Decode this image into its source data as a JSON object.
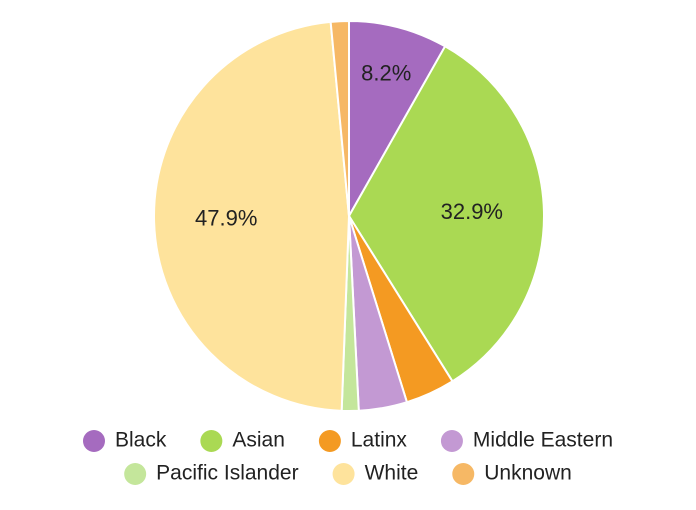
{
  "chart_data": {
    "type": "pie",
    "categories": [
      "Black",
      "Asian",
      "Latinx",
      "Middle Eastern",
      "Pacific Islander",
      "White",
      "Unknown"
    ],
    "values": [
      8.2,
      32.9,
      4.1,
      4.0,
      1.4,
      47.9,
      1.5
    ],
    "value_labels": [
      "8.2%",
      "32.9%",
      null,
      null,
      null,
      "47.9%",
      null
    ],
    "colors": [
      "#a56bbf",
      "#aad953",
      "#f49a22",
      "#c399d3",
      "#c4e69b",
      "#fee39c",
      "#f6b865"
    ],
    "legend": "bottom"
  }
}
